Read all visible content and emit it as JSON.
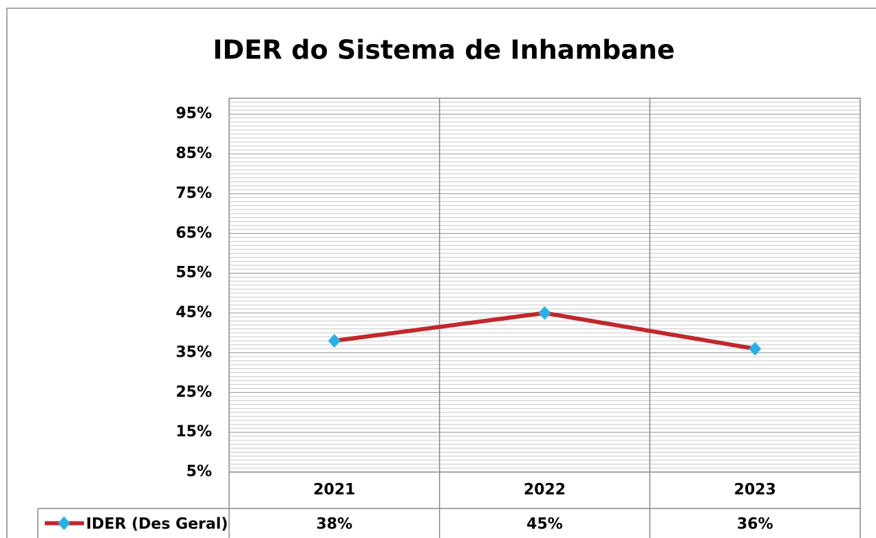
{
  "chart_data": {
    "type": "line",
    "title": "IDER do Sistema de Inhambane",
    "categories": [
      "2021",
      "2022",
      "2023"
    ],
    "series": [
      {
        "name": "IDER (Des Geral)",
        "color": "#c0282d",
        "marker_color": "#2ab0e4",
        "values": [
          38,
          45,
          36
        ],
        "value_labels": [
          "38%",
          "45%",
          "36%"
        ]
      }
    ],
    "ylim": [
      5,
      99
    ],
    "yticks": [
      {
        "value": 5,
        "label": "5%"
      },
      {
        "value": 15,
        "label": "15%"
      },
      {
        "value": 25,
        "label": "25%"
      },
      {
        "value": 35,
        "label": "35%"
      },
      {
        "value": 45,
        "label": "45%"
      },
      {
        "value": 55,
        "label": "55%"
      },
      {
        "value": 65,
        "label": "65%"
      },
      {
        "value": 75,
        "label": "75%"
      },
      {
        "value": 85,
        "label": "85%"
      },
      {
        "value": 95,
        "label": "95%"
      }
    ],
    "grid": true,
    "minor_grid": 1
  }
}
